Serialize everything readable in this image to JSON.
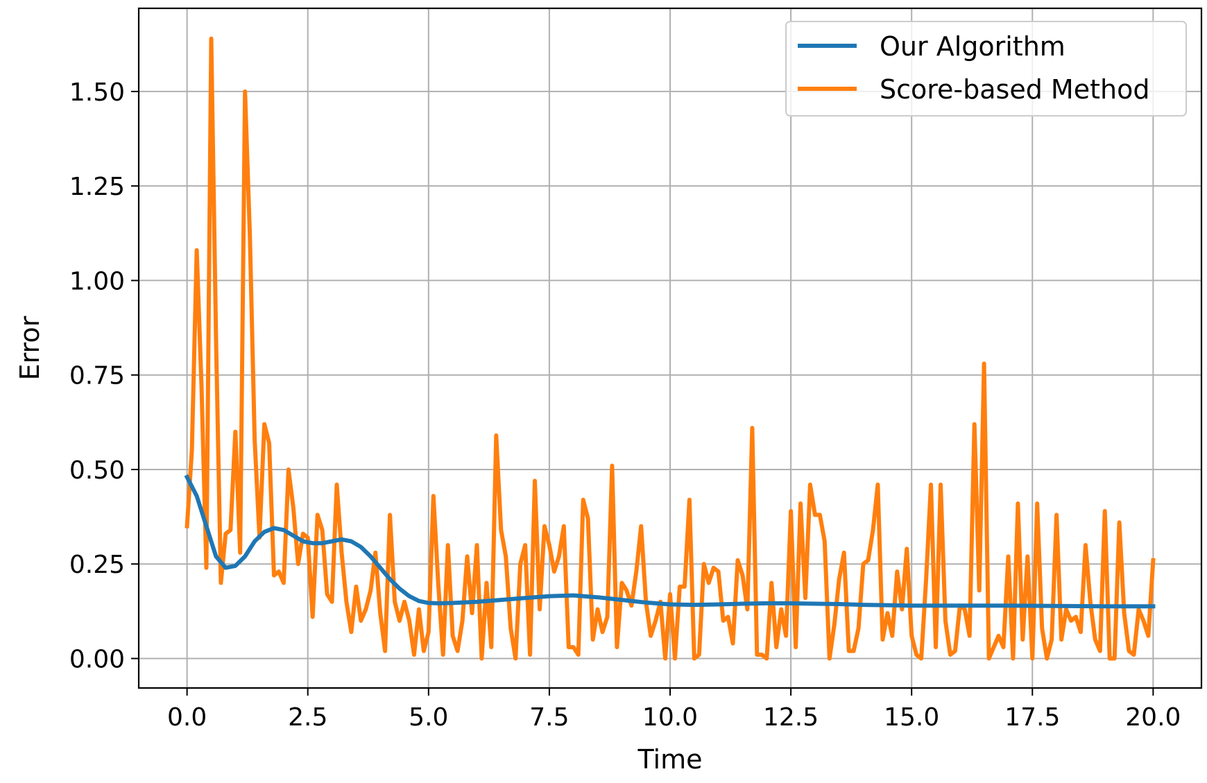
{
  "chart_data": {
    "type": "line",
    "title": "",
    "xlabel": "Time",
    "ylabel": "Error",
    "xlim": [
      -1.0,
      21.0
    ],
    "ylim": [
      -0.078,
      1.72
    ],
    "xticks": [
      0.0,
      2.5,
      5.0,
      7.5,
      10.0,
      12.5,
      15.0,
      17.5,
      20.0
    ],
    "xtick_labels": [
      "0.0",
      "2.5",
      "5.0",
      "7.5",
      "10.0",
      "12.5",
      "15.0",
      "17.5",
      "20.0"
    ],
    "yticks": [
      0.0,
      0.25,
      0.5,
      0.75,
      1.0,
      1.25,
      1.5
    ],
    "ytick_labels": [
      "0.00",
      "0.25",
      "0.50",
      "0.75",
      "1.00",
      "1.25",
      "1.50"
    ],
    "grid": true,
    "legend_position": "top-right",
    "series": [
      {
        "name": "Our Algorithm",
        "color": "#1f77b4",
        "x": [
          0.0,
          0.2,
          0.4,
          0.6,
          0.8,
          1.0,
          1.2,
          1.4,
          1.6,
          1.8,
          2.0,
          2.2,
          2.4,
          2.6,
          2.8,
          3.0,
          3.2,
          3.4,
          3.6,
          3.8,
          4.0,
          4.2,
          4.4,
          4.6,
          4.8,
          5.0,
          5.2,
          5.5,
          6.0,
          6.5,
          7.0,
          7.5,
          8.0,
          8.5,
          9.0,
          9.5,
          10.0,
          10.5,
          11.0,
          11.5,
          12.0,
          12.5,
          13.0,
          13.5,
          14.0,
          14.5,
          15.0,
          16.0,
          17.0,
          18.0,
          19.0,
          20.0
        ],
        "y": [
          0.48,
          0.43,
          0.35,
          0.27,
          0.24,
          0.245,
          0.27,
          0.31,
          0.335,
          0.345,
          0.34,
          0.325,
          0.31,
          0.305,
          0.305,
          0.31,
          0.315,
          0.31,
          0.295,
          0.27,
          0.24,
          0.21,
          0.185,
          0.165,
          0.152,
          0.147,
          0.146,
          0.147,
          0.15,
          0.155,
          0.16,
          0.165,
          0.167,
          0.162,
          0.155,
          0.148,
          0.143,
          0.142,
          0.143,
          0.145,
          0.146,
          0.146,
          0.145,
          0.144,
          0.142,
          0.141,
          0.14,
          0.14,
          0.14,
          0.139,
          0.138,
          0.138
        ]
      },
      {
        "name": "Score-based Method",
        "color": "#ff7f0e",
        "x": [
          0.0,
          0.1,
          0.2,
          0.3,
          0.4,
          0.5,
          0.6,
          0.7,
          0.8,
          0.9,
          1.0,
          1.1,
          1.2,
          1.3,
          1.4,
          1.5,
          1.6,
          1.7,
          1.8,
          1.9,
          2.0,
          2.1,
          2.2,
          2.3,
          2.4,
          2.5,
          2.6,
          2.7,
          2.8,
          2.9,
          3.0,
          3.1,
          3.2,
          3.3,
          3.4,
          3.5,
          3.6,
          3.7,
          3.8,
          3.9,
          4.0,
          4.1,
          4.2,
          4.3,
          4.4,
          4.5,
          4.6,
          4.7,
          4.8,
          4.9,
          5.0,
          5.1,
          5.2,
          5.3,
          5.4,
          5.5,
          5.6,
          5.7,
          5.8,
          5.9,
          6.0,
          6.1,
          6.2,
          6.3,
          6.4,
          6.5,
          6.6,
          6.7,
          6.8,
          6.9,
          7.0,
          7.1,
          7.2,
          7.3,
          7.4,
          7.5,
          7.6,
          7.7,
          7.8,
          7.9,
          8.0,
          8.1,
          8.2,
          8.3,
          8.4,
          8.5,
          8.6,
          8.7,
          8.8,
          8.9,
          9.0,
          9.1,
          9.2,
          9.3,
          9.4,
          9.5,
          9.6,
          9.7,
          9.8,
          9.9,
          10.0,
          10.1,
          10.2,
          10.3,
          10.4,
          10.5,
          10.6,
          10.7,
          10.8,
          10.9,
          11.0,
          11.1,
          11.2,
          11.3,
          11.4,
          11.5,
          11.6,
          11.7,
          11.8,
          11.9,
          12.0,
          12.1,
          12.2,
          12.3,
          12.4,
          12.5,
          12.6,
          12.7,
          12.8,
          12.9,
          13.0,
          13.1,
          13.2,
          13.3,
          13.4,
          13.5,
          13.6,
          13.7,
          13.8,
          13.9,
          14.0,
          14.1,
          14.2,
          14.3,
          14.4,
          14.5,
          14.6,
          14.7,
          14.8,
          14.9,
          15.0,
          15.1,
          15.2,
          15.3,
          15.4,
          15.5,
          15.6,
          15.7,
          15.8,
          15.9,
          16.0,
          16.1,
          16.2,
          16.3,
          16.4,
          16.5,
          16.6,
          16.7,
          16.8,
          16.9,
          17.0,
          17.1,
          17.2,
          17.3,
          17.4,
          17.5,
          17.6,
          17.7,
          17.8,
          17.9,
          18.0,
          18.1,
          18.2,
          18.3,
          18.4,
          18.5,
          18.6,
          18.7,
          18.8,
          18.9,
          19.0,
          19.1,
          19.2,
          19.3,
          19.4,
          19.5,
          19.6,
          19.7,
          19.8,
          19.9,
          20.0
        ],
        "y": [
          0.35,
          0.55,
          1.08,
          0.72,
          0.24,
          1.64,
          0.85,
          0.2,
          0.33,
          0.34,
          0.6,
          0.28,
          1.5,
          1.12,
          0.58,
          0.32,
          0.62,
          0.57,
          0.22,
          0.23,
          0.2,
          0.5,
          0.4,
          0.25,
          0.33,
          0.32,
          0.11,
          0.38,
          0.34,
          0.17,
          0.15,
          0.46,
          0.28,
          0.15,
          0.07,
          0.19,
          0.1,
          0.13,
          0.18,
          0.28,
          0.12,
          0.02,
          0.38,
          0.15,
          0.1,
          0.15,
          0.1,
          0.01,
          0.13,
          0.02,
          0.07,
          0.43,
          0.2,
          0.01,
          0.3,
          0.06,
          0.02,
          0.1,
          0.27,
          0.12,
          0.3,
          0.0,
          0.2,
          0.03,
          0.59,
          0.34,
          0.27,
          0.08,
          0.0,
          0.25,
          0.3,
          0.01,
          0.47,
          0.13,
          0.35,
          0.3,
          0.23,
          0.27,
          0.35,
          0.03,
          0.03,
          0.01,
          0.42,
          0.37,
          0.05,
          0.13,
          0.07,
          0.11,
          0.51,
          0.03,
          0.2,
          0.18,
          0.14,
          0.23,
          0.35,
          0.15,
          0.06,
          0.1,
          0.15,
          0.0,
          0.17,
          0.0,
          0.19,
          0.19,
          0.42,
          0.0,
          0.01,
          0.25,
          0.2,
          0.24,
          0.23,
          0.1,
          0.11,
          0.04,
          0.26,
          0.22,
          0.13,
          0.61,
          0.01,
          0.01,
          0.0,
          0.2,
          0.03,
          0.13,
          0.06,
          0.39,
          0.03,
          0.41,
          0.16,
          0.46,
          0.38,
          0.38,
          0.31,
          0.0,
          0.09,
          0.21,
          0.28,
          0.02,
          0.02,
          0.08,
          0.25,
          0.26,
          0.34,
          0.46,
          0.05,
          0.12,
          0.06,
          0.23,
          0.13,
          0.29,
          0.06,
          0.01,
          0.0,
          0.21,
          0.46,
          0.03,
          0.46,
          0.1,
          0.01,
          0.02,
          0.14,
          0.13,
          0.06,
          0.62,
          0.18,
          0.78,
          0.0,
          0.03,
          0.06,
          0.03,
          0.27,
          0.0,
          0.41,
          0.05,
          0.27,
          0.0,
          0.41,
          0.08,
          0.0,
          0.05,
          0.38,
          0.05,
          0.13,
          0.1,
          0.11,
          0.07,
          0.3,
          0.15,
          0.05,
          0.02,
          0.39,
          0.0,
          0.0,
          0.36,
          0.12,
          0.02,
          0.01,
          0.13,
          0.1,
          0.06,
          0.26
        ]
      }
    ]
  }
}
